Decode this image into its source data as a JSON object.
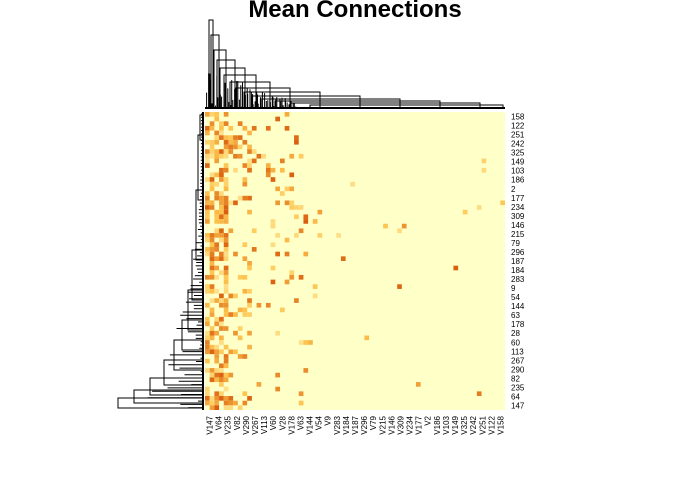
{
  "chart_data": {
    "type": "heatmap",
    "title": "Mean Connections",
    "xlabel": "",
    "ylabel": "",
    "row_labels": [
      "158",
      "122",
      "251",
      "242",
      "325",
      "149",
      "103",
      "186",
      "2",
      "177",
      "234",
      "309",
      "146",
      "215",
      "79",
      "296",
      "187",
      "184",
      "283",
      "9",
      "54",
      "144",
      "63",
      "178",
      "28",
      "60",
      "113",
      "267",
      "290",
      "82",
      "235",
      "64",
      "147"
    ],
    "col_labels": [
      "V147",
      "V64",
      "V235",
      "V82",
      "V290",
      "V267",
      "V113",
      "V60",
      "V28",
      "V178",
      "V63",
      "V144",
      "V54",
      "V9",
      "V283",
      "V184",
      "V187",
      "V296",
      "V79",
      "V215",
      "V146",
      "V309",
      "V234",
      "V177",
      "V2",
      "V186",
      "V103",
      "V149",
      "V325",
      "V242",
      "V251",
      "V122",
      "V158"
    ],
    "color_low": "#ffffc8",
    "color_mid": "#fec44f",
    "color_high": "#d95f0e",
    "dendrograms": [
      "top",
      "left"
    ],
    "legend": "none"
  }
}
